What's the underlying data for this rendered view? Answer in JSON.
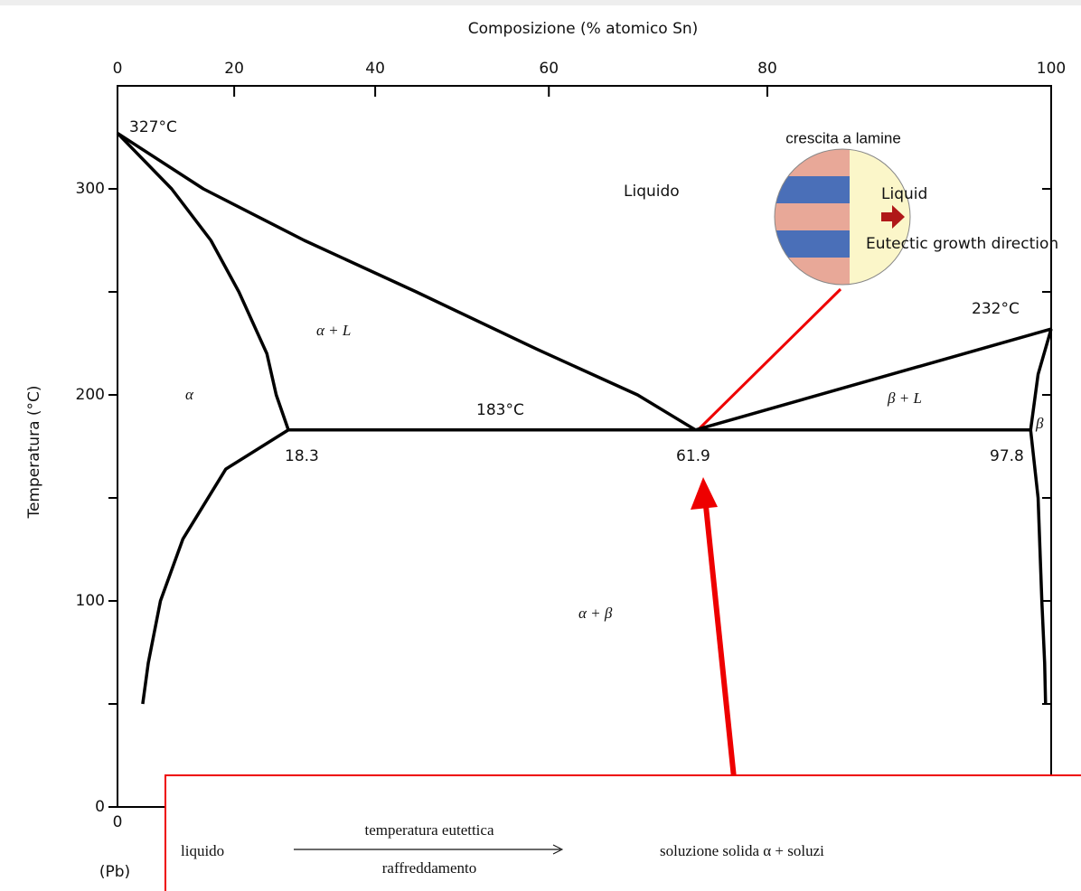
{
  "chart_data": {
    "type": "line",
    "title": "Composizione (% atomico Sn)",
    "y_label": "Temperatura (°C)",
    "x_end_label": "(Pb)",
    "xlim": [
      0,
      100
    ],
    "ylim": [
      0,
      350
    ],
    "xticks": [
      0
    ],
    "xtick_marks": [
      0,
      10,
      20,
      30,
      40,
      50,
      60,
      70,
      80,
      90,
      100
    ],
    "x2ticks": [
      0,
      {
        "value": 12.5,
        "label": "20"
      },
      {
        "value": 27.6,
        "label": "40"
      },
      {
        "value": 46.2,
        "label": "60"
      },
      {
        "value": 69.6,
        "label": "80"
      },
      100
    ],
    "yticks": [
      0,
      100,
      200,
      300
    ],
    "ytick_marks": [
      0,
      50,
      100,
      150,
      200,
      250,
      300
    ],
    "color": "#000000",
    "series": [
      {
        "x": [
          0,
          9.2,
          20,
          32,
          45,
          55.7,
          61.9
        ],
        "values": [
          327,
          300,
          275,
          250,
          222,
          200,
          183
        ]
      },
      {
        "x": [
          61.9,
          100
        ],
        "values": [
          183,
          232
        ]
      },
      {
        "x": [
          0,
          5.8,
          10,
          13,
          16,
          17,
          18.3
        ],
        "values": [
          327,
          300,
          275,
          250,
          220,
          200,
          183
        ]
      },
      {
        "x": [
          18.3,
          11.6,
          7,
          4.6,
          3.3,
          2.7
        ],
        "values": [
          183,
          164,
          130,
          100,
          70,
          50
        ]
      },
      {
        "x": [
          18.3,
          97.8
        ],
        "values": [
          183,
          183
        ]
      },
      {
        "x": [
          100,
          98.6,
          97.8
        ],
        "values": [
          232,
          210,
          183
        ]
      },
      {
        "x": [
          97.8,
          98.6,
          99,
          99.3,
          99.4
        ],
        "values": [
          183,
          150,
          100,
          70,
          50
        ]
      }
    ],
    "annotations": [
      "327°C",
      "232°C",
      "183°C",
      "18.3",
      "61.9",
      "97.8",
      "Liquido",
      "α + L",
      "α",
      "β + L",
      "β",
      "α + β",
      "crescita a lamine"
    ],
    "inset_labels": [
      "Liquid",
      "Eutectic growth direction"
    ],
    "equation": {
      "left": "liquido",
      "above": "temperatura eutettica",
      "below": "raffreddamento",
      "right": "soluzione solida α + soluzi"
    }
  }
}
